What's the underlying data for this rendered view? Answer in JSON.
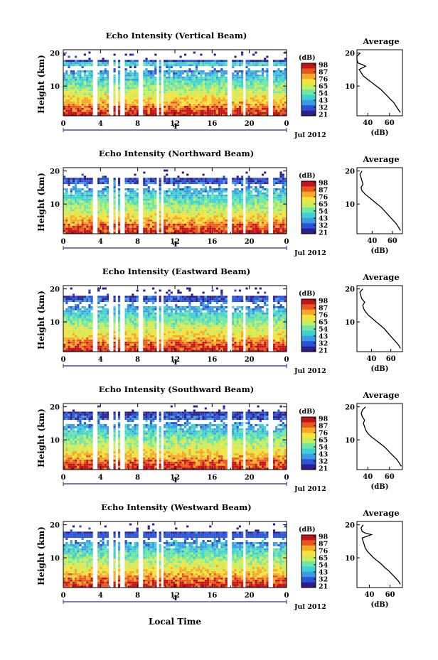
{
  "chart_data": [
    {
      "type": "heatmap",
      "title": "Echo Intensity (Vertical Beam)",
      "ylabel": "Height (km)",
      "x_ticks": [
        "0",
        "4",
        "8",
        "12",
        "16",
        "20",
        "0"
      ],
      "y_ticks": [
        "20",
        "10"
      ],
      "date_mark": "4",
      "date_label": "Jul 2012",
      "colorbar_unit": "(dB)",
      "colorbar_ticks": [
        "98",
        "87",
        "76",
        "65",
        "54",
        "43",
        "32",
        "21"
      ],
      "profile_title": "Average",
      "profile_xlabel": "(dB)",
      "profile_x_ticks": [
        "40",
        "60"
      ],
      "profile_xlim": [
        30,
        72
      ],
      "profile_y_ticks": [
        "20",
        "10"
      ],
      "profile": [
        [
          70,
          2
        ],
        [
          68,
          3
        ],
        [
          66,
          4
        ],
        [
          64,
          5
        ],
        [
          61,
          6
        ],
        [
          58,
          7
        ],
        [
          55,
          8
        ],
        [
          52,
          9
        ],
        [
          48,
          10
        ],
        [
          44,
          11
        ],
        [
          40,
          12
        ],
        [
          36,
          13
        ],
        [
          34,
          14
        ],
        [
          32,
          15
        ],
        [
          38,
          16
        ],
        [
          35,
          16.5
        ],
        [
          31,
          17
        ],
        [
          30,
          18
        ],
        [
          30,
          19
        ],
        [
          33,
          20
        ]
      ]
    },
    {
      "type": "heatmap",
      "title": "Echo Intensity (Northward Beam)",
      "ylabel": "Height (km)",
      "x_ticks": [
        "0",
        "4",
        "8",
        "12",
        "16",
        "20",
        "0"
      ],
      "y_ticks": [
        "20",
        "10"
      ],
      "date_mark": "4",
      "date_label": "Jul 2012",
      "colorbar_unit": "(dB)",
      "colorbar_ticks": [
        "98",
        "87",
        "76",
        "65",
        "54",
        "43",
        "32",
        "21"
      ],
      "profile_title": "Average",
      "profile_xlabel": "(dB)",
      "profile_x_ticks": [
        "40",
        "60"
      ],
      "profile_xlim": [
        25,
        70
      ],
      "profile_y_ticks": [
        "20",
        "10"
      ],
      "profile": [
        [
          68,
          2
        ],
        [
          66,
          3
        ],
        [
          64,
          4
        ],
        [
          61,
          5
        ],
        [
          58,
          6
        ],
        [
          55,
          7
        ],
        [
          52,
          8
        ],
        [
          49,
          9
        ],
        [
          45,
          10
        ],
        [
          41,
          11
        ],
        [
          37,
          12
        ],
        [
          33,
          13
        ],
        [
          30,
          14
        ],
        [
          29,
          15
        ],
        [
          31,
          16
        ],
        [
          30,
          17
        ],
        [
          29,
          18
        ],
        [
          28,
          19
        ],
        [
          30,
          20
        ]
      ]
    },
    {
      "type": "heatmap",
      "title": "Echo Intensity (Eastward Beam)",
      "ylabel": "Height (km)",
      "x_ticks": [
        "0",
        "4",
        "8",
        "12",
        "16",
        "20",
        "0"
      ],
      "y_ticks": [
        "20",
        "10"
      ],
      "date_mark": "4",
      "date_label": "Jul 2012",
      "colorbar_unit": "(dB)",
      "colorbar_ticks": [
        "98",
        "87",
        "76",
        "65",
        "54",
        "43",
        "32",
        "21"
      ],
      "profile_title": "Average",
      "profile_xlabel": "(dB)",
      "profile_x_ticks": [
        "40",
        "60"
      ],
      "profile_xlim": [
        25,
        72
      ],
      "profile_y_ticks": [
        "20",
        "10"
      ],
      "profile": [
        [
          70,
          2
        ],
        [
          68,
          3
        ],
        [
          65,
          4
        ],
        [
          62,
          5
        ],
        [
          59,
          6
        ],
        [
          56,
          7
        ],
        [
          53,
          8
        ],
        [
          49,
          9
        ],
        [
          45,
          10
        ],
        [
          41,
          11
        ],
        [
          37,
          12
        ],
        [
          34,
          13
        ],
        [
          32,
          14
        ],
        [
          31,
          15
        ],
        [
          33,
          16
        ],
        [
          30,
          17
        ],
        [
          29,
          18
        ],
        [
          28,
          19
        ],
        [
          31,
          20
        ]
      ]
    },
    {
      "type": "heatmap",
      "title": "Echo Intensity (Southward Beam)",
      "ylabel": "Height (km)",
      "x_ticks": [
        "0",
        "4",
        "8",
        "12",
        "16",
        "20",
        "0"
      ],
      "y_ticks": [
        "20",
        "10"
      ],
      "date_mark": "4",
      "date_label": "Jul 2012",
      "colorbar_unit": "(dB)",
      "colorbar_ticks": [
        "98",
        "87",
        "76",
        "65",
        "54",
        "43",
        "32",
        "21"
      ],
      "profile_title": "Average",
      "profile_xlabel": "(dB)",
      "profile_x_ticks": [
        "40",
        "60"
      ],
      "profile_xlim": [
        30,
        72
      ],
      "profile_y_ticks": [
        "20",
        "10"
      ],
      "profile": [
        [
          71,
          2
        ],
        [
          69,
          3
        ],
        [
          67,
          4
        ],
        [
          64,
          5
        ],
        [
          61,
          6
        ],
        [
          58,
          7
        ],
        [
          55,
          8
        ],
        [
          51,
          9
        ],
        [
          47,
          10
        ],
        [
          43,
          11
        ],
        [
          40,
          12
        ],
        [
          38,
          13
        ],
        [
          37,
          14
        ],
        [
          36,
          15
        ],
        [
          37,
          16
        ],
        [
          35,
          17
        ],
        [
          34,
          18
        ],
        [
          35,
          19
        ],
        [
          38,
          20
        ]
      ]
    },
    {
      "type": "heatmap",
      "title": "Echo Intensity (Westward Beam)",
      "ylabel": "Height (km)",
      "x_ticks": [
        "0",
        "4",
        "8",
        "12",
        "16",
        "20",
        "0"
      ],
      "y_ticks": [
        "20",
        "10"
      ],
      "date_mark": "4",
      "date_label": "Jul 2012",
      "colorbar_unit": "(dB)",
      "colorbar_ticks": [
        "98",
        "87",
        "76",
        "65",
        "54",
        "43",
        "32",
        "21"
      ],
      "profile_title": "Average",
      "profile_xlabel": "(dB)",
      "profile_x_ticks": [
        "40",
        "60"
      ],
      "profile_xlim": [
        28,
        72
      ],
      "profile_y_ticks": [
        "20",
        "10"
      ],
      "profile": [
        [
          70,
          2
        ],
        [
          68,
          3
        ],
        [
          65,
          4
        ],
        [
          62,
          5
        ],
        [
          59,
          6
        ],
        [
          55,
          7
        ],
        [
          52,
          8
        ],
        [
          48,
          9
        ],
        [
          44,
          10
        ],
        [
          41,
          11
        ],
        [
          38,
          12
        ],
        [
          36,
          13
        ],
        [
          35,
          14
        ],
        [
          34,
          15
        ],
        [
          33,
          16
        ],
        [
          42,
          17
        ],
        [
          36,
          17.5
        ],
        [
          33,
          18
        ],
        [
          32,
          19
        ],
        [
          34,
          20
        ]
      ]
    }
  ],
  "xlabel": "Local Time",
  "colorscale": [
    "#2d1e8c",
    "#2a54d8",
    "#3d9be6",
    "#3ed1d3",
    "#72e6a4",
    "#c4ee5e",
    "#f8e23e",
    "#f7a928",
    "#e8581e",
    "#c4121a"
  ]
}
